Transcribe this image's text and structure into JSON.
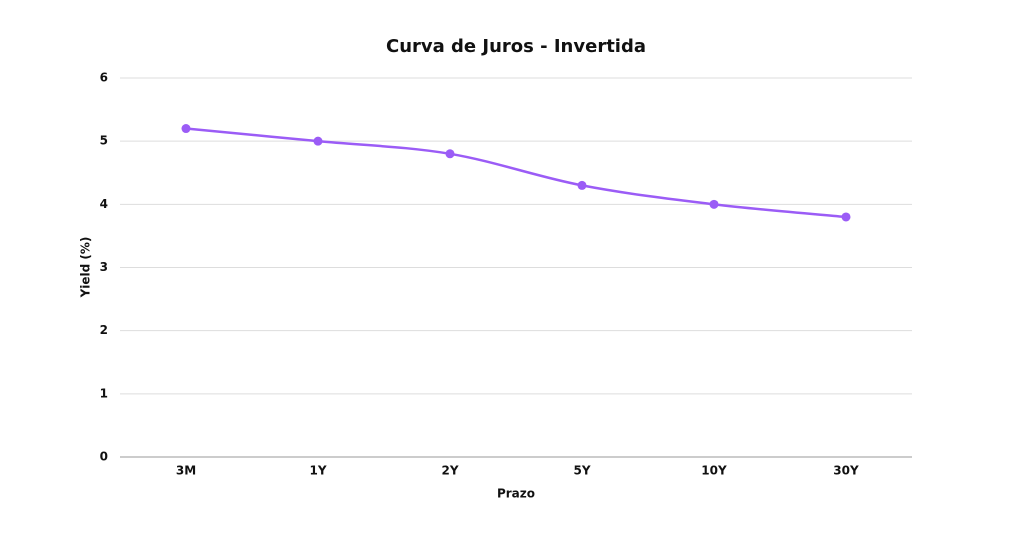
{
  "chart_data": {
    "type": "line",
    "title": "Curva de Juros - Invertida",
    "x_label": "Prazo",
    "y_label": "Yield (%)",
    "categories": [
      "3M",
      "1Y",
      "2Y",
      "5Y",
      "10Y",
      "30Y"
    ],
    "values": [
      5.2,
      5.0,
      4.8,
      4.3,
      4.0,
      3.8
    ],
    "color": "#9b5cf6",
    "ylim": [
      0,
      6
    ],
    "yticks": [
      0,
      1,
      2,
      3,
      4,
      5,
      6
    ],
    "grid": true,
    "smooth": true
  }
}
